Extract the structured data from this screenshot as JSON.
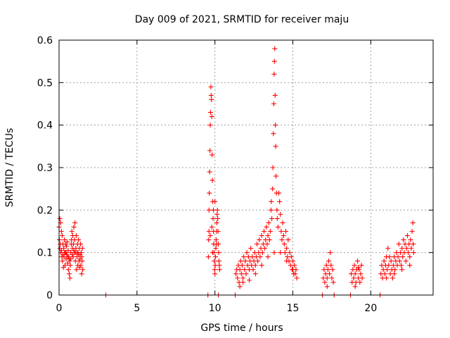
{
  "chart_data": {
    "type": "scatter",
    "title": "Day 009 of 2021, SRMTID for receiver maju",
    "xlabel": "GPS time / hours",
    "ylabel": "SRMTID / TECUs",
    "xlim": [
      0,
      24
    ],
    "ylim": [
      0,
      0.6
    ],
    "xticks": [
      0,
      5,
      10,
      15,
      20
    ],
    "xtick_labels": [
      "0",
      "5",
      "10",
      "15",
      "20"
    ],
    "yticks": [
      0,
      0.1,
      0.2,
      0.3,
      0.4,
      0.5,
      0.6
    ],
    "ytick_labels": [
      "0",
      "0.1",
      "0.2",
      "0.3",
      "0.4",
      "0.5",
      "0.6"
    ],
    "grid": true,
    "marker": "+",
    "color": "#ff0000",
    "series": [
      {
        "name": "maju",
        "points": [
          [
            0.0,
            0.16
          ],
          [
            0.02,
            0.13
          ],
          [
            0.05,
            0.18
          ],
          [
            0.08,
            0.12
          ],
          [
            0.1,
            0.17
          ],
          [
            0.12,
            0.1
          ],
          [
            0.15,
            0.15
          ],
          [
            0.18,
            0.09
          ],
          [
            0.2,
            0.14
          ],
          [
            0.22,
            0.08
          ],
          [
            0.25,
            0.12
          ],
          [
            0.28,
            0.065
          ],
          [
            0.3,
            0.11
          ],
          [
            0.32,
            0.09
          ],
          [
            0.35,
            0.13
          ],
          [
            0.38,
            0.07
          ],
          [
            0.4,
            0.1
          ],
          [
            0.42,
            0.12
          ],
          [
            0.45,
            0.085
          ],
          [
            0.48,
            0.115
          ],
          [
            0.5,
            0.095
          ],
          [
            0.52,
            0.125
          ],
          [
            0.55,
            0.075
          ],
          [
            0.58,
            0.105
          ],
          [
            0.6,
            0.06
          ],
          [
            0.62,
            0.09
          ],
          [
            0.65,
            0.05
          ],
          [
            0.68,
            0.08
          ],
          [
            0.7,
            0.04
          ],
          [
            0.72,
            0.07
          ],
          [
            0.75,
            0.1
          ],
          [
            0.78,
            0.12
          ],
          [
            0.8,
            0.13
          ],
          [
            0.82,
            0.15
          ],
          [
            0.85,
            0.11
          ],
          [
            0.88,
            0.14
          ],
          [
            0.9,
            0.09
          ],
          [
            0.92,
            0.12
          ],
          [
            0.95,
            0.16
          ],
          [
            0.98,
            0.1
          ],
          [
            1.0,
            0.13
          ],
          [
            1.02,
            0.17
          ],
          [
            1.05,
            0.08
          ],
          [
            1.08,
            0.11
          ],
          [
            1.1,
            0.14
          ],
          [
            1.12,
            0.06
          ],
          [
            1.15,
            0.09
          ],
          [
            1.18,
            0.12
          ],
          [
            1.2,
            0.07
          ],
          [
            1.22,
            0.1
          ],
          [
            1.25,
            0.13
          ],
          [
            1.28,
            0.08
          ],
          [
            1.3,
            0.11
          ],
          [
            1.32,
            0.065
          ],
          [
            1.35,
            0.095
          ],
          [
            1.38,
            0.12
          ],
          [
            1.4,
            0.07
          ],
          [
            1.42,
            0.1
          ],
          [
            1.45,
            0.05
          ],
          [
            1.48,
            0.08
          ],
          [
            1.5,
            0.11
          ],
          [
            1.52,
            0.06
          ],
          [
            0.05,
            0.11
          ],
          [
            0.15,
            0.105
          ],
          [
            0.25,
            0.095
          ],
          [
            0.35,
            0.1
          ],
          [
            0.45,
            0.1
          ],
          [
            0.55,
            0.09
          ],
          [
            0.65,
            0.085
          ],
          [
            0.75,
            0.085
          ],
          [
            0.85,
            0.095
          ],
          [
            0.95,
            0.105
          ],
          [
            1.05,
            0.1
          ],
          [
            1.15,
            0.1
          ],
          [
            1.25,
            0.095
          ],
          [
            1.35,
            0.085
          ],
          [
            1.45,
            0.09
          ],
          [
            3.0,
            0.0
          ],
          [
            9.55,
            0.0
          ],
          [
            9.58,
            0.09
          ],
          [
            9.6,
            0.13
          ],
          [
            9.62,
            0.2
          ],
          [
            9.64,
            0.24
          ],
          [
            9.66,
            0.29
          ],
          [
            9.68,
            0.34
          ],
          [
            9.7,
            0.4
          ],
          [
            9.72,
            0.43
          ],
          [
            9.74,
            0.49
          ],
          [
            9.76,
            0.47
          ],
          [
            9.78,
            0.46
          ],
          [
            9.8,
            0.42
          ],
          [
            9.82,
            0.33
          ],
          [
            9.84,
            0.27
          ],
          [
            9.86,
            0.22
          ],
          [
            9.88,
            0.18
          ],
          [
            9.9,
            0.15
          ],
          [
            9.92,
            0.12
          ],
          [
            9.94,
            0.1
          ],
          [
            9.96,
            0.08
          ],
          [
            9.98,
            0.06
          ],
          [
            10.0,
            0.05
          ],
          [
            10.02,
            0.07
          ],
          [
            10.04,
            0.09
          ],
          [
            10.06,
            0.11
          ],
          [
            10.08,
            0.13
          ],
          [
            10.1,
            0.15
          ],
          [
            10.12,
            0.17
          ],
          [
            10.14,
            0.19
          ],
          [
            10.16,
            0.2
          ],
          [
            10.18,
            0.18
          ],
          [
            10.2,
            0.15
          ],
          [
            10.22,
            0.12
          ],
          [
            10.24,
            0.1
          ],
          [
            10.26,
            0.08
          ],
          [
            10.28,
            0.07
          ],
          [
            10.3,
            0.06
          ],
          [
            9.7,
            0.14
          ],
          [
            9.8,
            0.16
          ],
          [
            9.9,
            0.2
          ],
          [
            10.0,
            0.22
          ],
          [
            10.1,
            0.12
          ],
          [
            9.62,
            0.15
          ],
          [
            9.85,
            0.1
          ],
          [
            10.22,
            0.0
          ],
          [
            11.3,
            0.0
          ],
          [
            11.35,
            0.05
          ],
          [
            11.4,
            0.06
          ],
          [
            11.45,
            0.04
          ],
          [
            11.5,
            0.07
          ],
          [
            11.55,
            0.03
          ],
          [
            11.6,
            0.06
          ],
          [
            11.65,
            0.08
          ],
          [
            11.7,
            0.05
          ],
          [
            11.75,
            0.07
          ],
          [
            11.8,
            0.04
          ],
          [
            11.85,
            0.09
          ],
          [
            11.9,
            0.06
          ],
          [
            11.95,
            0.08
          ],
          [
            12.0,
            0.05
          ],
          [
            12.05,
            0.1
          ],
          [
            12.1,
            0.07
          ],
          [
            12.15,
            0.09
          ],
          [
            12.2,
            0.06
          ],
          [
            12.25,
            0.08
          ],
          [
            12.3,
            0.11
          ],
          [
            12.35,
            0.07
          ],
          [
            12.4,
            0.09
          ],
          [
            12.45,
            0.06
          ],
          [
            12.5,
            0.08
          ],
          [
            12.55,
            0.1
          ],
          [
            12.6,
            0.07
          ],
          [
            12.65,
            0.09
          ],
          [
            12.7,
            0.12
          ],
          [
            12.75,
            0.08
          ],
          [
            12.8,
            0.1
          ],
          [
            12.85,
            0.13
          ],
          [
            12.9,
            0.09
          ],
          [
            12.95,
            0.11
          ],
          [
            13.0,
            0.14
          ],
          [
            13.05,
            0.1
          ],
          [
            13.1,
            0.12
          ],
          [
            13.15,
            0.15
          ],
          [
            13.2,
            0.11
          ],
          [
            13.25,
            0.13
          ],
          [
            13.3,
            0.16
          ],
          [
            13.35,
            0.12
          ],
          [
            13.4,
            0.14
          ],
          [
            13.45,
            0.17
          ],
          [
            13.5,
            0.13
          ],
          [
            13.55,
            0.15
          ],
          [
            13.6,
            0.2
          ],
          [
            13.62,
            0.22
          ],
          [
            13.65,
            0.18
          ],
          [
            13.7,
            0.25
          ],
          [
            13.72,
            0.3
          ],
          [
            13.75,
            0.38
          ],
          [
            13.78,
            0.45
          ],
          [
            13.8,
            0.52
          ],
          [
            13.82,
            0.55
          ],
          [
            13.84,
            0.58
          ],
          [
            13.86,
            0.47
          ],
          [
            13.88,
            0.4
          ],
          [
            13.9,
            0.35
          ],
          [
            13.92,
            0.28
          ],
          [
            13.95,
            0.24
          ],
          [
            13.98,
            0.2
          ],
          [
            14.0,
            0.18
          ],
          [
            14.05,
            0.16
          ],
          [
            14.1,
            0.24
          ],
          [
            14.15,
            0.22
          ],
          [
            14.2,
            0.19
          ],
          [
            14.25,
            0.15
          ],
          [
            14.3,
            0.13
          ],
          [
            14.35,
            0.17
          ],
          [
            14.4,
            0.14
          ],
          [
            14.45,
            0.12
          ],
          [
            14.5,
            0.1
          ],
          [
            14.55,
            0.15
          ],
          [
            14.6,
            0.11
          ],
          [
            14.65,
            0.09
          ],
          [
            14.7,
            0.13
          ],
          [
            14.75,
            0.08
          ],
          [
            14.8,
            0.1
          ],
          [
            14.85,
            0.07
          ],
          [
            14.9,
            0.09
          ],
          [
            14.95,
            0.06
          ],
          [
            15.0,
            0.08
          ],
          [
            15.05,
            0.05
          ],
          [
            15.1,
            0.07
          ],
          [
            15.15,
            0.05
          ],
          [
            15.2,
            0.06
          ],
          [
            15.25,
            0.04
          ],
          [
            11.6,
            0.02
          ],
          [
            11.8,
            0.03
          ],
          [
            12.2,
            0.035
          ],
          [
            12.6,
            0.05
          ],
          [
            13.0,
            0.07
          ],
          [
            13.4,
            0.09
          ],
          [
            13.8,
            0.1
          ],
          [
            14.2,
            0.1
          ],
          [
            14.6,
            0.08
          ],
          [
            15.0,
            0.06
          ],
          [
            16.9,
            0.0
          ],
          [
            16.95,
            0.04
          ],
          [
            17.0,
            0.06
          ],
          [
            17.05,
            0.03
          ],
          [
            17.1,
            0.05
          ],
          [
            17.15,
            0.07
          ],
          [
            17.2,
            0.04
          ],
          [
            17.25,
            0.06
          ],
          [
            17.3,
            0.08
          ],
          [
            17.35,
            0.05
          ],
          [
            17.4,
            0.1
          ],
          [
            17.45,
            0.07
          ],
          [
            17.5,
            0.04
          ],
          [
            17.55,
            0.06
          ],
          [
            17.6,
            0.03
          ],
          [
            17.65,
            0.0
          ],
          [
            17.2,
            0.02
          ],
          [
            18.7,
            0.0
          ],
          [
            18.75,
            0.05
          ],
          [
            18.8,
            0.03
          ],
          [
            18.85,
            0.06
          ],
          [
            18.9,
            0.04
          ],
          [
            18.95,
            0.07
          ],
          [
            19.0,
            0.05
          ],
          [
            19.05,
            0.03
          ],
          [
            19.1,
            0.06
          ],
          [
            19.15,
            0.08
          ],
          [
            19.2,
            0.04
          ],
          [
            19.25,
            0.06
          ],
          [
            19.3,
            0.03
          ],
          [
            19.35,
            0.05
          ],
          [
            19.4,
            0.07
          ],
          [
            19.45,
            0.04
          ],
          [
            19.0,
            0.02
          ],
          [
            19.2,
            0.065
          ],
          [
            20.6,
            0.0
          ],
          [
            20.65,
            0.05
          ],
          [
            20.7,
            0.07
          ],
          [
            20.75,
            0.04
          ],
          [
            20.8,
            0.06
          ],
          [
            20.85,
            0.08
          ],
          [
            20.9,
            0.05
          ],
          [
            20.95,
            0.07
          ],
          [
            21.0,
            0.09
          ],
          [
            21.05,
            0.06
          ],
          [
            21.1,
            0.11
          ],
          [
            21.15,
            0.07
          ],
          [
            21.2,
            0.09
          ],
          [
            21.25,
            0.05
          ],
          [
            21.3,
            0.08
          ],
          [
            21.35,
            0.06
          ],
          [
            21.4,
            0.04
          ],
          [
            21.45,
            0.07
          ],
          [
            21.5,
            0.09
          ],
          [
            21.55,
            0.06
          ],
          [
            21.6,
            0.08
          ],
          [
            21.65,
            0.1
          ],
          [
            21.7,
            0.07
          ],
          [
            21.75,
            0.09
          ],
          [
            21.8,
            0.12
          ],
          [
            21.85,
            0.08
          ],
          [
            21.9,
            0.1
          ],
          [
            21.95,
            0.07
          ],
          [
            22.0,
            0.11
          ],
          [
            22.05,
            0.09
          ],
          [
            22.1,
            0.13
          ],
          [
            22.15,
            0.1
          ],
          [
            22.2,
            0.12
          ],
          [
            22.25,
            0.08
          ],
          [
            22.3,
            0.11
          ],
          [
            22.35,
            0.14
          ],
          [
            22.4,
            0.1
          ],
          [
            22.45,
            0.12
          ],
          [
            22.5,
            0.09
          ],
          [
            22.55,
            0.13
          ],
          [
            22.6,
            0.11
          ],
          [
            22.65,
            0.15
          ],
          [
            22.7,
            0.17
          ],
          [
            22.72,
            0.12
          ],
          [
            22.75,
            0.1
          ],
          [
            21.0,
            0.04
          ],
          [
            21.5,
            0.05
          ],
          [
            22.0,
            0.06
          ],
          [
            22.5,
            0.07
          ]
        ]
      }
    ]
  }
}
